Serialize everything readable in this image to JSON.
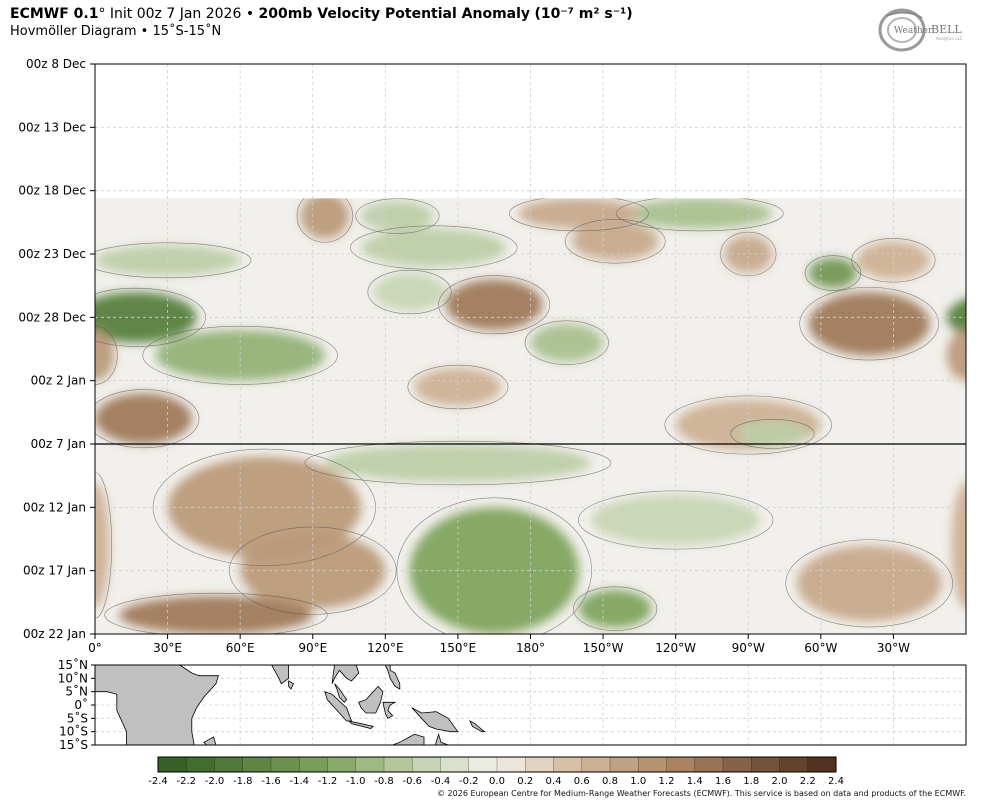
{
  "header": {
    "model": "ECMWF 0.1",
    "deg": "°",
    "init": "Init 00z 7 Jan 2026",
    "bullet": "•",
    "title_main": "200mb Velocity Potential Anomaly",
    "units": "(10⁻⁷ m² s⁻¹)",
    "subtitle": "Hovmöller Diagram • 15˚S-15˚N"
  },
  "logo": {
    "text_pre": "Weather",
    "text_post": "BELL",
    "text_small": "Analytics LLC"
  },
  "copyright": "© 2026 European Centre for Medium-Range Weather Forecasts (ECMWF). This service is based on data and products of the ECMWF.",
  "colors": {
    "strong_negative": "#2f5a1f",
    "mid_negative": "#7fa45e",
    "weak_negative": "#d2dcc0",
    "neutral": "#f2f0ec",
    "weak_positive": "#ddc8b0",
    "mid_positive": "#b08a68",
    "strong_positive": "#4b2a1b",
    "land": "#c0c0c0"
  },
  "chart_data": {
    "type": "heatmap",
    "title": "200mb Velocity Potential Anomaly",
    "xlabel": "",
    "ylabel": "",
    "x_ticks": [
      "0°",
      "30°E",
      "60°E",
      "90°E",
      "120°E",
      "150°E",
      "180°",
      "150°W",
      "120°W",
      "90°W",
      "60°W",
      "30°W"
    ],
    "y_ticks": [
      "00z 8 Dec",
      "00z 13 Dec",
      "00z 18 Dec",
      "00z 23 Dec",
      "00z 28 Dec",
      "00z 2 Jan",
      "00z 7 Jan",
      "00z 12 Jan",
      "00z 17 Jan",
      "00z 22 Jan"
    ],
    "xlim_lon_east": [
      0,
      360
    ],
    "time_range_days_from_8Dec": [
      0,
      45
    ],
    "data_start_day": 10.6,
    "init_line_day": 30,
    "grid": true,
    "colorbar": {
      "ticks": [
        -2.4,
        -2.2,
        -2.0,
        -1.8,
        -1.6,
        -1.4,
        -1.2,
        -1.0,
        -0.8,
        -0.6,
        -0.4,
        -0.2,
        0.0,
        0.2,
        0.4,
        0.6,
        0.8,
        1.0,
        1.2,
        1.4,
        1.6,
        1.8,
        2.0,
        2.2,
        2.4
      ],
      "labels": [
        "-2.4",
        "-2.2",
        "-2.0",
        "-1.8",
        "-1.6",
        "-1.4",
        "-1.2",
        "-1.0",
        "-0.8",
        "-0.6",
        "-0.4",
        "-0.2",
        "0.0",
        "0.2",
        "0.4",
        "0.6",
        "0.8",
        "1.0",
        "1.2",
        "1.4",
        "1.6",
        "1.8",
        "2.0",
        "2.2",
        "2.4"
      ]
    },
    "anomaly_regions": [
      {
        "lon": 250,
        "day": 11.8,
        "rlon": 30,
        "rday": 1.2,
        "value": -0.8
      },
      {
        "lon": 200,
        "day": 11.8,
        "rlon": 25,
        "rday": 1.2,
        "value": 0.8
      },
      {
        "lon": 95,
        "day": 12.0,
        "rlon": 10,
        "rday": 1.8,
        "value": 1.0
      },
      {
        "lon": 125,
        "day": 12.0,
        "rlon": 15,
        "rday": 1.2,
        "value": -0.6
      },
      {
        "lon": 215,
        "day": 14.0,
        "rlon": 18,
        "rday": 1.5,
        "value": 0.8
      },
      {
        "lon": 140,
        "day": 14.5,
        "rlon": 30,
        "rday": 1.5,
        "value": -0.6
      },
      {
        "lon": 30,
        "day": 15.5,
        "rlon": 30,
        "rday": 1.2,
        "value": -0.6
      },
      {
        "lon": 305,
        "day": 16.5,
        "rlon": 10,
        "rday": 1.2,
        "value": -1.4
      },
      {
        "lon": 270,
        "day": 15.0,
        "rlon": 10,
        "rday": 1.5,
        "value": 0.8
      },
      {
        "lon": 330,
        "day": 15.5,
        "rlon": 15,
        "rday": 1.5,
        "value": 0.7
      },
      {
        "lon": 17,
        "day": 20.0,
        "rlon": 25,
        "rday": 2.0,
        "value": -1.8
      },
      {
        "lon": 165,
        "day": 19.0,
        "rlon": 20,
        "rday": 2.0,
        "value": 1.4
      },
      {
        "lon": 130,
        "day": 18.0,
        "rlon": 15,
        "rday": 1.5,
        "value": -0.5
      },
      {
        "lon": 320,
        "day": 20.5,
        "rlon": 25,
        "rday": 2.5,
        "value": 1.4
      },
      {
        "lon": 60,
        "day": 23.0,
        "rlon": 35,
        "rday": 2.0,
        "value": -1.0
      },
      {
        "lon": 195,
        "day": 22.0,
        "rlon": 15,
        "rday": 1.5,
        "value": -0.8
      },
      {
        "lon": 0,
        "day": 23.0,
        "rlon": 8,
        "rday": 2.0,
        "value": 1.0
      },
      {
        "lon": 150,
        "day": 25.5,
        "rlon": 18,
        "rday": 1.5,
        "value": 0.7
      },
      {
        "lon": 20,
        "day": 28.0,
        "rlon": 20,
        "rday": 2.0,
        "value": 1.4
      },
      {
        "lon": 270,
        "day": 28.5,
        "rlon": 30,
        "rday": 2.0,
        "value": 0.7
      },
      {
        "lon": 280,
        "day": 29.2,
        "rlon": 15,
        "rday": 1.0,
        "value": -0.6
      },
      {
        "lon": 150,
        "day": 31.5,
        "rlon": 55,
        "rday": 1.5,
        "value": -0.6
      },
      {
        "lon": 70,
        "day": 35.0,
        "rlon": 40,
        "rday": 4.0,
        "value": 1.0
      },
      {
        "lon": 165,
        "day": 40.0,
        "rlon": 35,
        "rday": 5.0,
        "value": -1.2
      },
      {
        "lon": 215,
        "day": 43.0,
        "rlon": 15,
        "rday": 1.5,
        "value": -1.2
      },
      {
        "lon": 90,
        "day": 40.0,
        "rlon": 30,
        "rday": 3.0,
        "value": 1.0
      },
      {
        "lon": 50,
        "day": 43.5,
        "rlon": 40,
        "rday": 1.5,
        "value": 1.4
      },
      {
        "lon": 240,
        "day": 36.0,
        "rlon": 35,
        "rday": 2.0,
        "value": -0.5
      },
      {
        "lon": 320,
        "day": 41.0,
        "rlon": 30,
        "rday": 3.0,
        "value": 0.8
      },
      {
        "lon": 0,
        "day": 38.0,
        "rlon": 6,
        "rday": 5.0,
        "value": 0.7
      }
    ],
    "map_latitude_ticks": [
      "15˚N",
      "10˚N",
      "5˚N",
      "0˚",
      "5˚S",
      "10˚S",
      "15˚S"
    ]
  }
}
